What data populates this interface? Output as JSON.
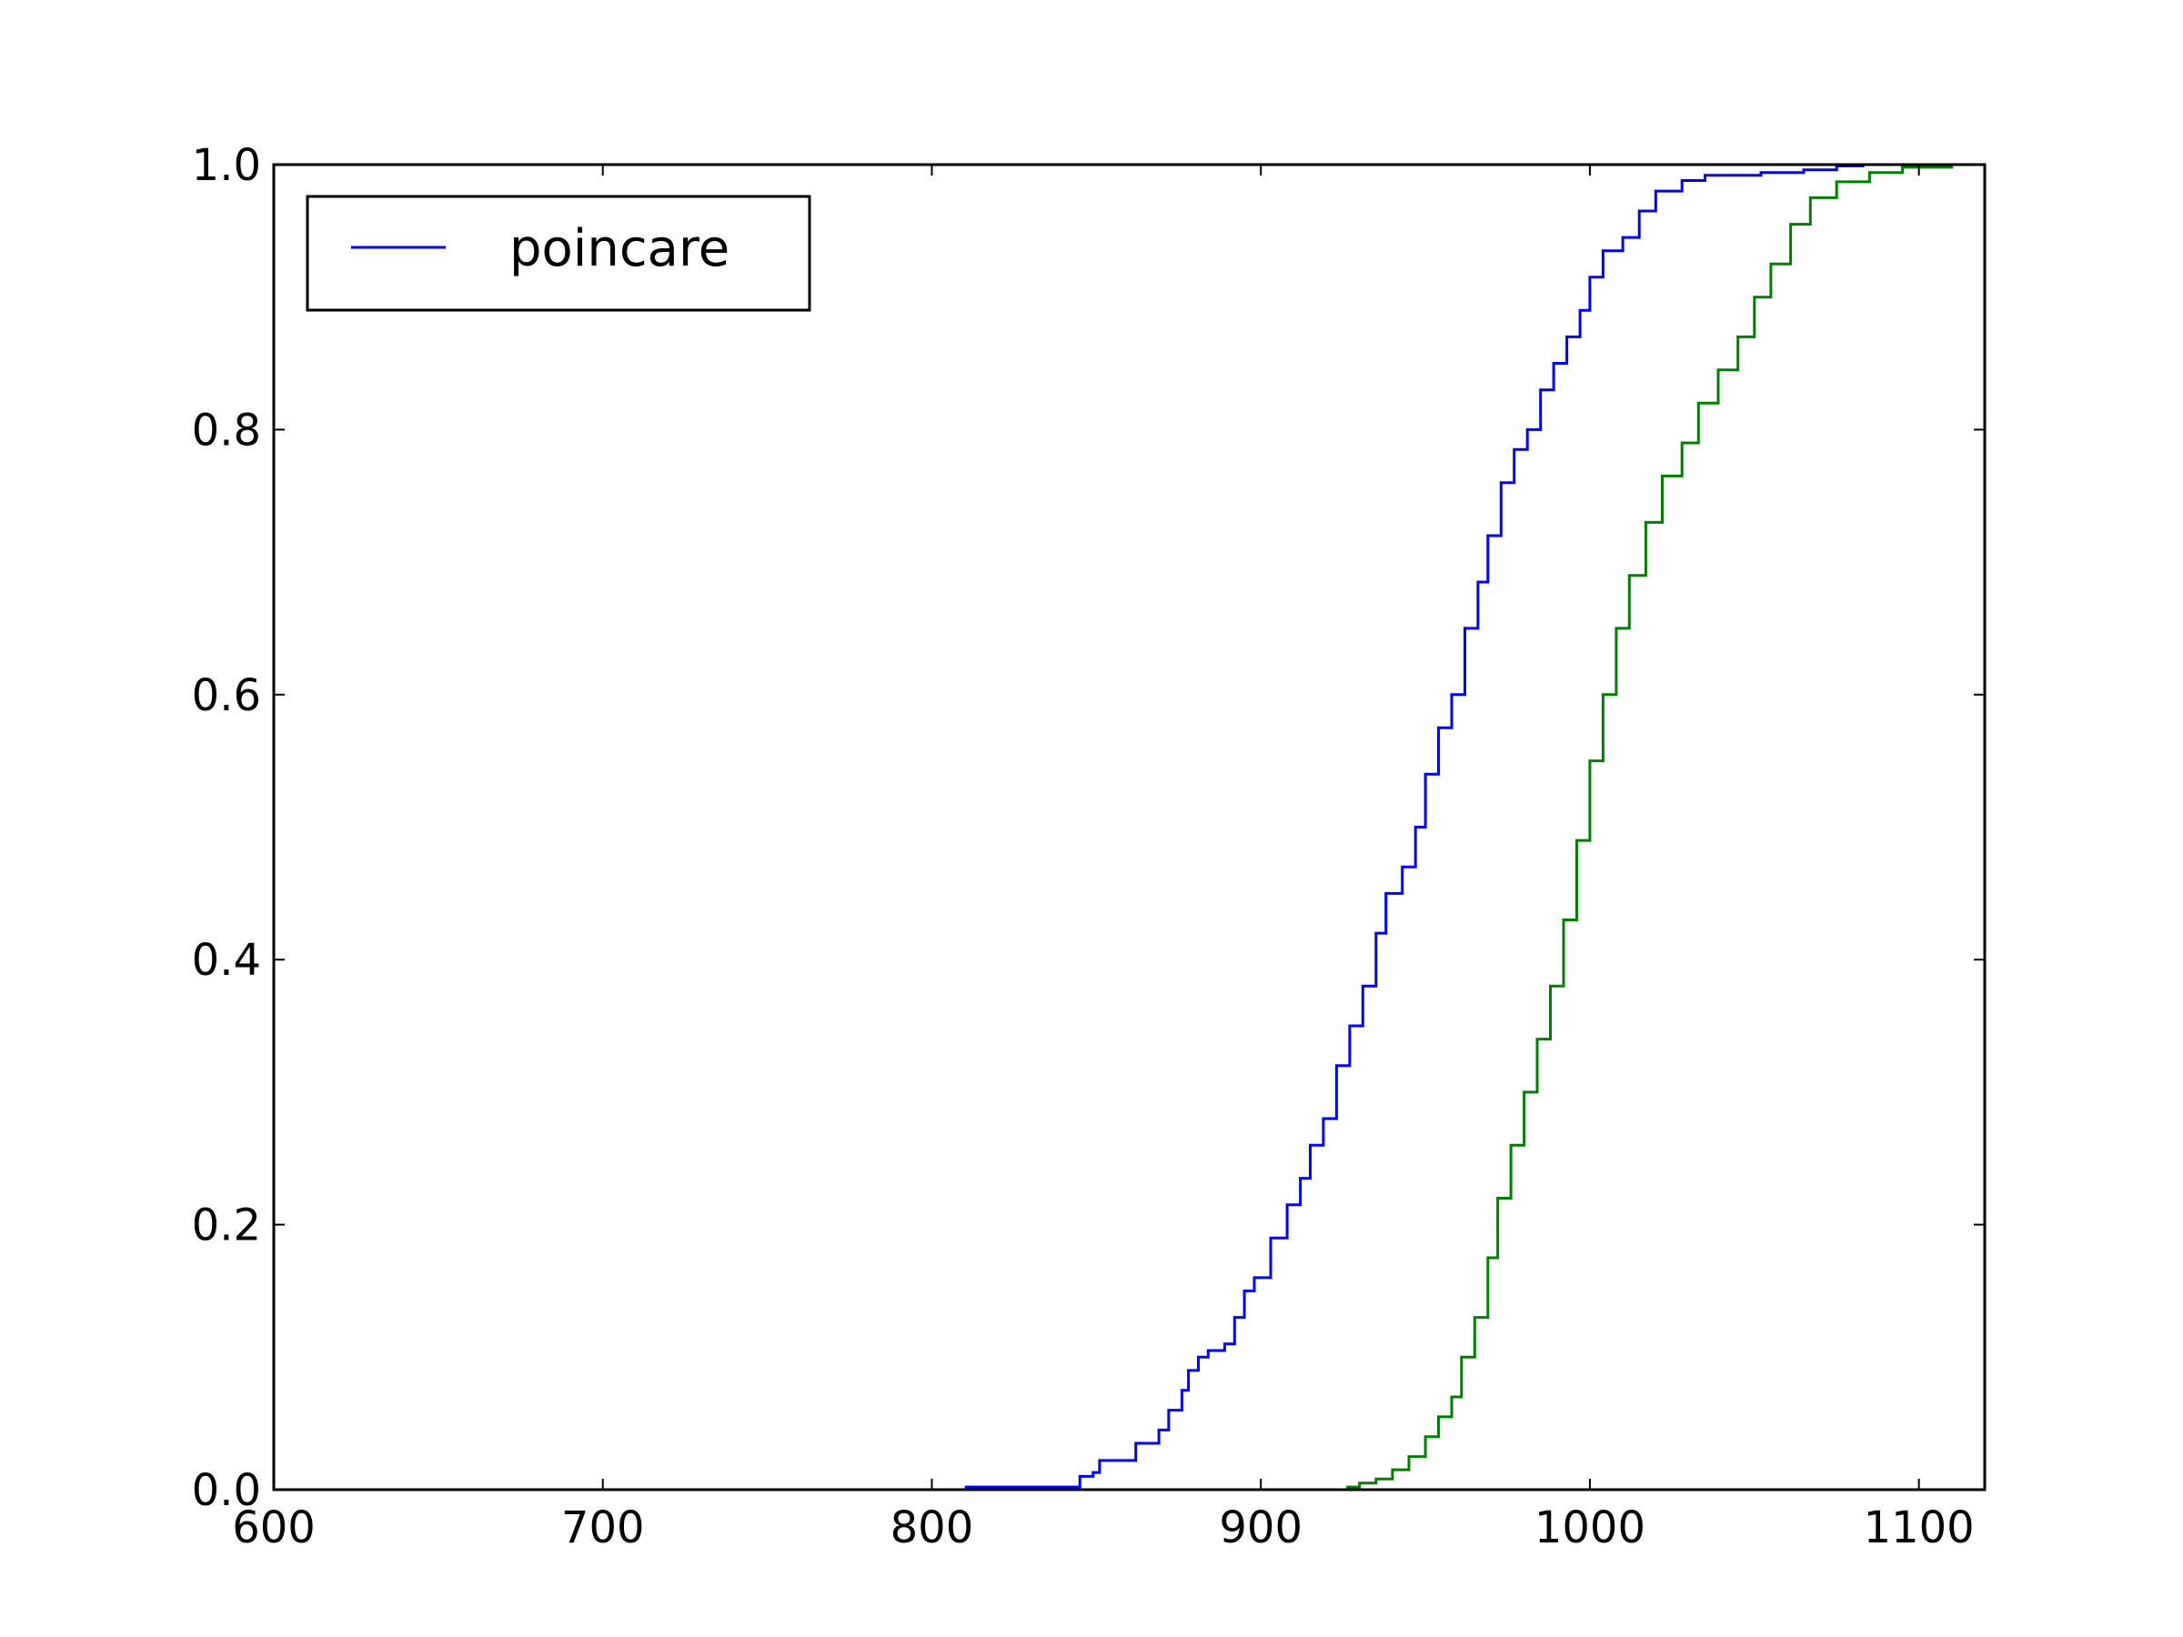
{
  "chart_data": {
    "type": "line",
    "title": "",
    "xlabel": "",
    "ylabel": "",
    "xlim": [
      600,
      1120
    ],
    "ylim": [
      0.0,
      1.0
    ],
    "xticks": [
      600,
      700,
      800,
      900,
      1000,
      1100
    ],
    "xtick_labels": [
      "600",
      "700",
      "800",
      "900",
      "1000",
      "1100"
    ],
    "yticks": [
      0.0,
      0.2,
      0.4,
      0.6,
      0.8,
      1.0
    ],
    "ytick_labels": [
      "0.0",
      "0.2",
      "0.4",
      "0.6",
      "0.8",
      "1.0"
    ],
    "grid": false,
    "legend": {
      "location": "upper-left",
      "entries": [
        "poincare"
      ]
    },
    "series": [
      {
        "name": "poincare",
        "color": "#0000ff",
        "step": true,
        "points": [
          [
            810,
            0.002
          ],
          [
            844,
            0.002
          ],
          [
            845,
            0.01
          ],
          [
            849,
            0.013
          ],
          [
            851,
            0.022
          ],
          [
            860,
            0.022
          ],
          [
            862,
            0.035
          ],
          [
            867,
            0.035
          ],
          [
            869,
            0.045
          ],
          [
            872,
            0.06
          ],
          [
            876,
            0.075
          ],
          [
            878,
            0.09
          ],
          [
            881,
            0.1
          ],
          [
            884,
            0.105
          ],
          [
            889,
            0.11
          ],
          [
            892,
            0.13
          ],
          [
            895,
            0.15
          ],
          [
            898,
            0.16
          ],
          [
            903,
            0.19
          ],
          [
            908,
            0.215
          ],
          [
            912,
            0.235
          ],
          [
            915,
            0.26
          ],
          [
            919,
            0.28
          ],
          [
            923,
            0.32
          ],
          [
            927,
            0.35
          ],
          [
            931,
            0.38
          ],
          [
            935,
            0.42
          ],
          [
            938,
            0.45
          ],
          [
            943,
            0.47
          ],
          [
            947,
            0.5
          ],
          [
            950,
            0.54
          ],
          [
            954,
            0.575
          ],
          [
            958,
            0.6
          ],
          [
            962,
            0.65
          ],
          [
            966,
            0.685
          ],
          [
            969,
            0.72
          ],
          [
            973,
            0.76
          ],
          [
            977,
            0.785
          ],
          [
            981,
            0.8
          ],
          [
            985,
            0.83
          ],
          [
            989,
            0.85
          ],
          [
            993,
            0.87
          ],
          [
            997,
            0.89
          ],
          [
            1000,
            0.915
          ],
          [
            1004,
            0.935
          ],
          [
            1010,
            0.945
          ],
          [
            1015,
            0.965
          ],
          [
            1020,
            0.98
          ],
          [
            1028,
            0.988
          ],
          [
            1035,
            0.992
          ],
          [
            1052,
            0.994
          ],
          [
            1065,
            0.996
          ],
          [
            1075,
            0.999
          ],
          [
            1083,
            1.0
          ]
        ]
      },
      {
        "name": "",
        "color": "#008000",
        "step": true,
        "points": [
          [
            926,
            0.002
          ],
          [
            930,
            0.005
          ],
          [
            935,
            0.008
          ],
          [
            940,
            0.015
          ],
          [
            945,
            0.025
          ],
          [
            950,
            0.04
          ],
          [
            954,
            0.055
          ],
          [
            958,
            0.07
          ],
          [
            961,
            0.1
          ],
          [
            965,
            0.13
          ],
          [
            969,
            0.175
          ],
          [
            972,
            0.22
          ],
          [
            976,
            0.26
          ],
          [
            980,
            0.3
          ],
          [
            984,
            0.34
          ],
          [
            988,
            0.38
          ],
          [
            992,
            0.43
          ],
          [
            996,
            0.49
          ],
          [
            1000,
            0.55
          ],
          [
            1004,
            0.6
          ],
          [
            1008,
            0.65
          ],
          [
            1012,
            0.69
          ],
          [
            1017,
            0.73
          ],
          [
            1022,
            0.765
          ],
          [
            1028,
            0.79
          ],
          [
            1033,
            0.82
          ],
          [
            1039,
            0.845
          ],
          [
            1045,
            0.87
          ],
          [
            1050,
            0.9
          ],
          [
            1055,
            0.925
          ],
          [
            1061,
            0.955
          ],
          [
            1067,
            0.975
          ],
          [
            1075,
            0.987
          ],
          [
            1085,
            0.994
          ],
          [
            1095,
            0.998
          ],
          [
            1110,
            1.0
          ],
          [
            1120,
            1.0
          ]
        ]
      }
    ]
  }
}
